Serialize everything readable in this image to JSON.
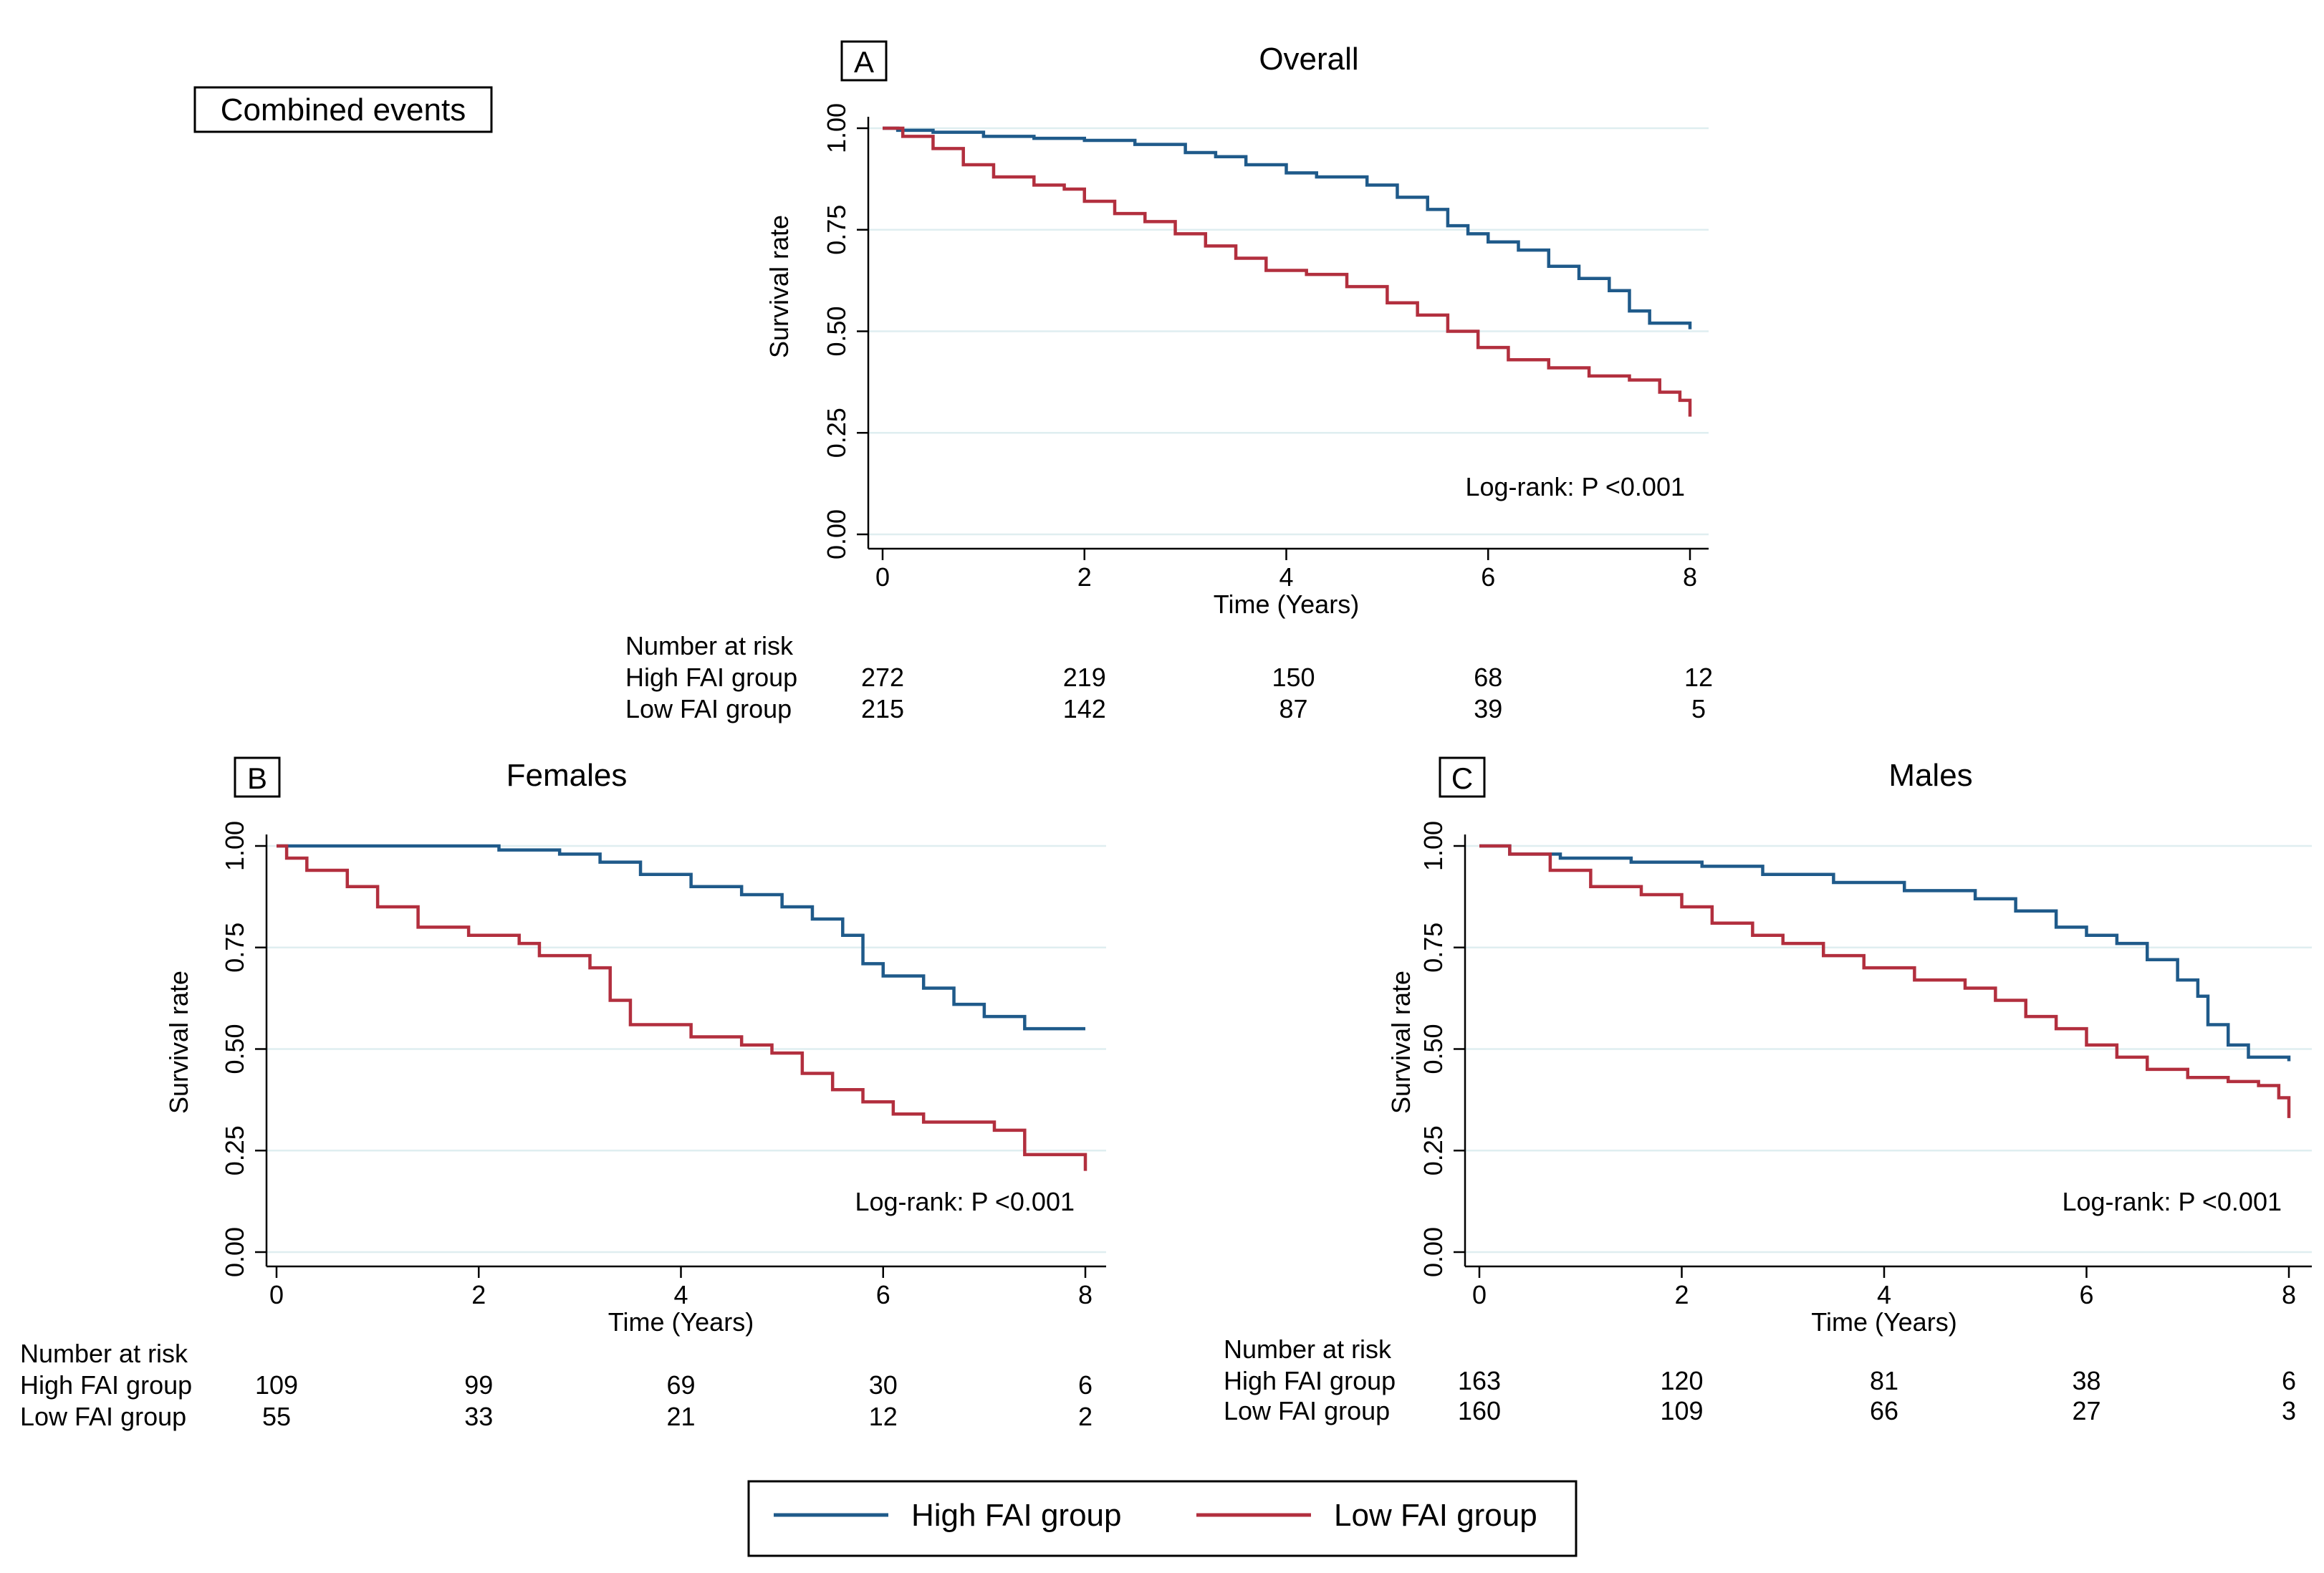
{
  "figure_label": "Combined events",
  "colors": {
    "high": "#1f5a8a",
    "low": "#b22f3e",
    "grid": "#dfeef0"
  },
  "legend": {
    "entries": [
      "High FAI group",
      "Low FAI group"
    ]
  },
  "chart_data": [
    {
      "panel": "A",
      "type": "line",
      "title": "Overall",
      "xlabel": "Time (Years)",
      "ylabel": "Survival rate",
      "xlim": [
        0,
        8
      ],
      "ylim": [
        0,
        1
      ],
      "xticks": [
        "0",
        "2",
        "4",
        "6",
        "8"
      ],
      "yticks": [
        "0.00",
        "0.25",
        "0.50",
        "0.75",
        "1.00"
      ],
      "annotation": "Log-rank: P <0.001",
      "series": [
        {
          "name": "High FAI group",
          "x": [
            0,
            0.15,
            0.5,
            1,
            1.5,
            2,
            2.5,
            3,
            3.3,
            3.6,
            4,
            4.3,
            4.8,
            5.1,
            5.4,
            5.6,
            5.8,
            6.0,
            6.3,
            6.6,
            6.9,
            7.2,
            7.4,
            7.6,
            8.0
          ],
          "y": [
            1,
            0.995,
            0.99,
            0.98,
            0.975,
            0.97,
            0.96,
            0.94,
            0.93,
            0.91,
            0.89,
            0.88,
            0.86,
            0.83,
            0.8,
            0.76,
            0.74,
            0.72,
            0.7,
            0.66,
            0.63,
            0.6,
            0.55,
            0.52,
            0.505
          ]
        },
        {
          "name": "Low FAI group",
          "x": [
            0,
            0.2,
            0.5,
            0.8,
            1.1,
            1.5,
            1.8,
            2.0,
            2.3,
            2.6,
            2.9,
            3.2,
            3.5,
            3.8,
            4.2,
            4.6,
            5.0,
            5.3,
            5.6,
            5.9,
            6.2,
            6.6,
            7.0,
            7.4,
            7.7,
            7.9,
            8.0
          ],
          "y": [
            1,
            0.98,
            0.95,
            0.91,
            0.88,
            0.86,
            0.85,
            0.82,
            0.79,
            0.77,
            0.74,
            0.71,
            0.68,
            0.65,
            0.64,
            0.61,
            0.57,
            0.54,
            0.5,
            0.46,
            0.43,
            0.41,
            0.39,
            0.38,
            0.35,
            0.33,
            0.29
          ]
        }
      ],
      "risk_table": {
        "title": "Number at risk",
        "times": [
          0,
          2,
          4,
          6,
          8
        ],
        "rows": [
          {
            "label": "High FAI group",
            "values": [
              "272",
              "219",
              "150",
              "68",
              "12"
            ]
          },
          {
            "label": "Low FAI group",
            "values": [
              "215",
              "142",
              "87",
              "39",
              "5"
            ]
          }
        ]
      }
    },
    {
      "panel": "B",
      "type": "line",
      "title": "Females",
      "xlabel": "Time (Years)",
      "ylabel": "Survival rate",
      "xlim": [
        0,
        8
      ],
      "ylim": [
        0,
        1
      ],
      "xticks": [
        "0",
        "2",
        "4",
        "6",
        "8"
      ],
      "yticks": [
        "0.00",
        "0.25",
        "0.50",
        "0.75",
        "1.00"
      ],
      "annotation": "Log-rank: P <0.001",
      "series": [
        {
          "name": "High FAI group",
          "x": [
            0,
            2.2,
            2.8,
            3.2,
            3.6,
            4.1,
            4.6,
            5.0,
            5.3,
            5.6,
            5.8,
            6.0,
            6.4,
            6.7,
            7.0,
            7.4,
            8.0
          ],
          "y": [
            1,
            0.99,
            0.98,
            0.96,
            0.93,
            0.9,
            0.88,
            0.85,
            0.82,
            0.78,
            0.71,
            0.68,
            0.65,
            0.61,
            0.58,
            0.55,
            0.55
          ]
        },
        {
          "name": "Low FAI group",
          "x": [
            0,
            0.1,
            0.3,
            0.7,
            1.0,
            1.4,
            1.9,
            2.4,
            2.6,
            3.1,
            3.3,
            3.5,
            4.1,
            4.6,
            4.9,
            5.2,
            5.5,
            5.8,
            6.1,
            6.4,
            7.1,
            7.4,
            7.9,
            8.0
          ],
          "y": [
            1,
            0.97,
            0.94,
            0.9,
            0.85,
            0.8,
            0.78,
            0.76,
            0.73,
            0.7,
            0.62,
            0.56,
            0.53,
            0.51,
            0.49,
            0.44,
            0.4,
            0.37,
            0.34,
            0.32,
            0.3,
            0.24,
            0.24,
            0.2
          ]
        }
      ],
      "risk_table": {
        "title": "Number at risk",
        "times": [
          0,
          2,
          4,
          6,
          8
        ],
        "rows": [
          {
            "label": "High FAI group",
            "values": [
              "109",
              "99",
              "69",
              "30",
              "6"
            ]
          },
          {
            "label": "Low FAI group",
            "values": [
              "55",
              "33",
              "21",
              "12",
              "2"
            ]
          }
        ]
      }
    },
    {
      "panel": "C",
      "type": "line",
      "title": "Males",
      "xlabel": "Time (Years)",
      "ylabel": "Survival rate",
      "xlim": [
        0,
        8
      ],
      "ylim": [
        0,
        1
      ],
      "xticks": [
        "0",
        "2",
        "4",
        "6",
        "8"
      ],
      "yticks": [
        "0.00",
        "0.25",
        "0.50",
        "0.75",
        "1.00"
      ],
      "annotation": "Log-rank: P <0.001",
      "series": [
        {
          "name": "High FAI group",
          "x": [
            0,
            0.3,
            0.8,
            1.5,
            2.2,
            2.8,
            3.5,
            4.2,
            4.9,
            5.3,
            5.7,
            6.0,
            6.3,
            6.6,
            6.9,
            7.1,
            7.2,
            7.4,
            7.6,
            8.0
          ],
          "y": [
            1,
            0.98,
            0.97,
            0.96,
            0.95,
            0.93,
            0.91,
            0.89,
            0.87,
            0.84,
            0.8,
            0.78,
            0.76,
            0.72,
            0.67,
            0.63,
            0.56,
            0.51,
            0.48,
            0.47
          ]
        },
        {
          "name": "Low FAI group",
          "x": [
            0,
            0.3,
            0.7,
            1.1,
            1.6,
            2.0,
            2.3,
            2.7,
            3.0,
            3.4,
            3.8,
            4.3,
            4.8,
            5.1,
            5.4,
            5.7,
            6.0,
            6.3,
            6.6,
            7.0,
            7.4,
            7.7,
            7.9,
            8.0
          ],
          "y": [
            1,
            0.98,
            0.94,
            0.9,
            0.88,
            0.85,
            0.81,
            0.78,
            0.76,
            0.73,
            0.7,
            0.67,
            0.65,
            0.62,
            0.58,
            0.55,
            0.51,
            0.48,
            0.45,
            0.43,
            0.42,
            0.41,
            0.38,
            0.33
          ]
        }
      ],
      "risk_table": {
        "title": "Number at risk",
        "times": [
          0,
          2,
          4,
          6,
          8
        ],
        "rows": [
          {
            "label": "High FAI group",
            "values": [
              "163",
              "120",
              "81",
              "38",
              "6"
            ]
          },
          {
            "label": "Low FAI group",
            "values": [
              "160",
              "109",
              "66",
              "27",
              "3"
            ]
          }
        ]
      }
    }
  ]
}
